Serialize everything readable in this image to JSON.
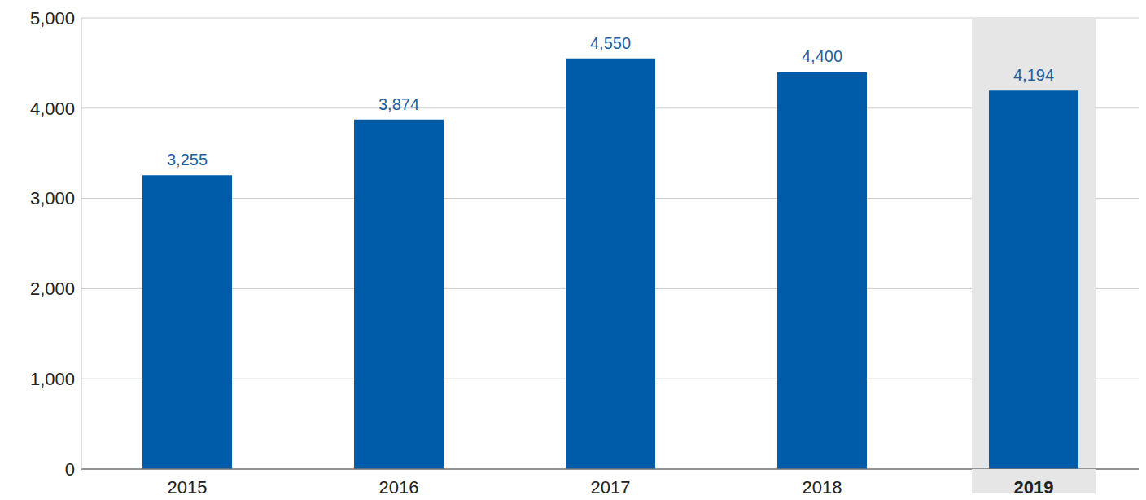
{
  "chart_data": {
    "type": "bar",
    "categories": [
      "2015",
      "2016",
      "2017",
      "2018",
      "2019"
    ],
    "values": [
      3255,
      3874,
      4550,
      4400,
      4194
    ],
    "value_labels": [
      "3,255",
      "3,874",
      "4,550",
      "4,400",
      "4,194"
    ],
    "data_labels": true,
    "color": "#005ca9",
    "ylim": [
      0,
      5000
    ],
    "yticks": [
      0,
      {
        "value": 1000,
        "label": "1,000"
      },
      {
        "value": 2000,
        "label": "2,000"
      },
      {
        "value": 3000,
        "label": "3,000"
      },
      {
        "value": 4000,
        "label": "4,000"
      },
      {
        "value": 5000,
        "label": "5,000"
      }
    ],
    "grid": true
  }
}
